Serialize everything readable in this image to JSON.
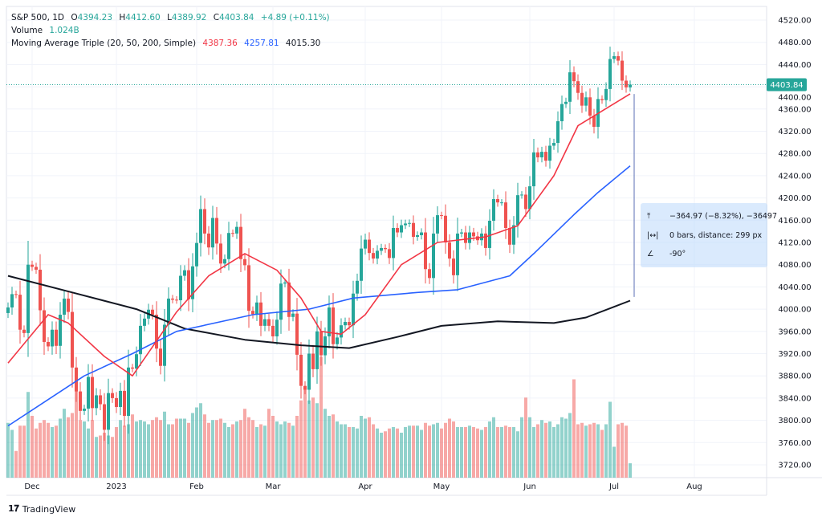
{
  "legend": {
    "symbol": "S&P 500, 1D",
    "open_label": "O",
    "open": "4394.23",
    "high_label": "H",
    "high": "4412.60",
    "low_label": "L",
    "low": "4389.92",
    "close_label": "C",
    "close": "4403.84",
    "change": "+4.89 (+0.11%)",
    "volume_label": "Volume",
    "volume": "1.024B",
    "ma_label": "Moving Average Triple (20, 50, 200, Simple)",
    "ma20": "4387.36",
    "ma50": "4257.81",
    "ma200": "4015.30"
  },
  "measure": {
    "price_range": "−364.97 (−8.32%), −36497",
    "bars_distance": "0 bars, distance: 299 px",
    "angle": "-90°",
    "icons": [
      "vertical-range-icon",
      "horizontal-range-icon",
      "angle-icon"
    ]
  },
  "brand": {
    "logo": "TV",
    "name": "TradingView"
  },
  "colors": {
    "up": "#26a69a",
    "down": "#ef5350",
    "ma20": "#f23645",
    "ma50": "#2962ff",
    "ma200": "#131722",
    "measure": "#5b6fb5"
  },
  "chart_data": {
    "type": "candlestick",
    "title": "S&P 500, 1D",
    "start_date": "2022-11-22",
    "ylim": [
      3700,
      4540
    ],
    "y_ticks": [
      "4520.00",
      "4480.00",
      "4440.00",
      "4400.00",
      "4360.00",
      "4320.00",
      "4280.00",
      "4240.00",
      "4200.00",
      "4160.00",
      "4120.00",
      "4080.00",
      "4040.00",
      "4000.00",
      "3960.00",
      "3920.00",
      "3880.00",
      "3840.00",
      "3800.00",
      "3760.00",
      "3720.00"
    ],
    "x_ticks": [
      {
        "label": "Dec",
        "date": "2022-12-01"
      },
      {
        "label": "2023",
        "date": "2023-01-03"
      },
      {
        "label": "Feb",
        "date": "2023-02-01"
      },
      {
        "label": "Mar",
        "date": "2023-03-01"
      },
      {
        "label": "Apr",
        "date": "2023-04-03"
      },
      {
        "label": "May",
        "date": "2023-05-01"
      },
      {
        "label": "Jun",
        "date": "2023-06-01"
      },
      {
        "label": "Jul",
        "date": "2023-07-03"
      },
      {
        "label": "Aug",
        "date": "2023-08-01"
      }
    ],
    "last_price": "4403.84",
    "closes": [
      4003,
      4027,
      4026,
      3963,
      3957,
      4080,
      4076,
      4071,
      3998,
      3941,
      3933,
      3963,
      3934,
      3990,
      4019,
      3995,
      3895,
      3852,
      3817,
      3821,
      3878,
      3822,
      3845,
      3829,
      3783,
      3849,
      3840,
      3824,
      3853,
      3808,
      3895,
      3893,
      3919,
      3970,
      3983,
      3999,
      3990,
      3929,
      3898,
      3972,
      4019,
      4017,
      4016,
      4060,
      4070,
      4018,
      4077,
      4119,
      4180,
      4136,
      4111,
      4164,
      4118,
      4082,
      4090,
      4137,
      4136,
      4148,
      4090,
      4079,
      3997,
      3991,
      4012,
      3970,
      3982,
      3970,
      3951,
      3981,
      4046,
      4048,
      3986,
      3992,
      3918,
      3862,
      3855,
      3920,
      3892,
      3960,
      3917,
      3951,
      4003,
      3937,
      3949,
      3971,
      3977,
      3971,
      4028,
      4051,
      4109,
      4125,
      4101,
      4091,
      4105,
      4110,
      4108,
      4092,
      4146,
      4138,
      4151,
      4154,
      4155,
      4130,
      4133,
      4138,
      4072,
      4056,
      4136,
      4169,
      4168,
      4120,
      4091,
      4061,
      4136,
      4138,
      4119,
      4138,
      4131,
      4124,
      4136,
      4110,
      4159,
      4198,
      4192,
      4192,
      4146,
      4116,
      4151,
      4205,
      4206,
      4180,
      4221,
      4282,
      4273,
      4283,
      4267,
      4294,
      4299,
      4338,
      4369,
      4373,
      4426,
      4410,
      4389,
      4366,
      4381,
      4348,
      4328,
      4378,
      4376,
      4396,
      4450,
      4455,
      4447,
      4411,
      4399,
      4403.84
    ],
    "volume_billions": [
      3.9,
      3.4,
      1.9,
      3.7,
      3.7,
      6.1,
      4.4,
      3.5,
      3.9,
      4.1,
      3.9,
      3.6,
      3.7,
      4.2,
      4.9,
      4.3,
      4.6,
      7.5,
      4.1,
      4.0,
      3.5,
      4.1,
      2.9,
      3.0,
      3.2,
      3.0,
      2.9,
      3.6,
      4.1,
      3.7,
      3.8,
      4.5,
      4.0,
      4.1,
      4.0,
      3.8,
      4.1,
      4.3,
      4.1,
      4.7,
      3.8,
      3.8,
      4.2,
      4.2,
      4.2,
      3.9,
      4.6,
      5.0,
      5.3,
      4.5,
      3.9,
      4.1,
      4.1,
      4.2,
      3.9,
      3.6,
      3.8,
      4.0,
      4.1,
      4.9,
      4.3,
      4.1,
      3.6,
      3.8,
      3.7,
      4.9,
      4.4,
      4.0,
      3.8,
      4.0,
      3.9,
      3.7,
      4.4,
      5.5,
      6.3,
      5.5,
      5.7,
      5.3,
      8.6,
      4.9,
      4.4,
      4.5,
      4.0,
      3.8,
      3.8,
      3.6,
      3.6,
      3.5,
      4.4,
      4.2,
      4.3,
      3.8,
      3.5,
      3.2,
      3.3,
      3.5,
      3.6,
      3.5,
      3.2,
      3.6,
      3.7,
      3.7,
      3.7,
      3.4,
      3.9,
      3.7,
      3.8,
      3.9,
      3.5,
      3.9,
      4.2,
      4.0,
      3.6,
      3.6,
      3.6,
      3.7,
      3.6,
      3.5,
      3.4,
      3.6,
      4.0,
      4.3,
      3.6,
      3.6,
      3.7,
      3.6,
      3.6,
      3.3,
      4.3,
      5.7,
      4.3,
      3.6,
      3.8,
      4.1,
      3.9,
      4.0,
      3.6,
      3.8,
      4.3,
      4.2,
      4.6,
      7.0,
      3.8,
      3.9,
      3.7,
      3.8,
      3.9,
      3.8,
      3.4,
      3.8,
      5.4,
      2.2,
      3.8,
      3.9,
      3.7,
      1.024
    ],
    "ma20": [
      [
        "2022-11-22",
        3903
      ],
      [
        "2022-12-07",
        3990
      ],
      [
        "2022-12-14",
        3975
      ],
      [
        "2022-12-28",
        3915
      ],
      [
        "2023-01-09",
        3880
      ],
      [
        "2023-01-25",
        3995
      ],
      [
        "2023-02-06",
        4060
      ],
      [
        "2023-02-17",
        4100
      ],
      [
        "2023-03-02",
        4070
      ],
      [
        "2023-03-10",
        4020
      ],
      [
        "2023-03-17",
        3960
      ],
      [
        "2023-03-24",
        3955
      ],
      [
        "2023-04-03",
        3990
      ],
      [
        "2023-04-17",
        4080
      ],
      [
        "2023-04-28",
        4120
      ],
      [
        "2023-05-16",
        4130
      ],
      [
        "2023-05-26",
        4150
      ],
      [
        "2023-06-09",
        4240
      ],
      [
        "2023-06-20",
        4330
      ],
      [
        "2023-07-10",
        4387.36
      ]
    ],
    "ma50": [
      [
        "2022-11-22",
        3790
      ],
      [
        "2022-12-20",
        3880
      ],
      [
        "2023-01-09",
        3920
      ],
      [
        "2023-01-25",
        3960
      ],
      [
        "2023-02-22",
        3990
      ],
      [
        "2023-03-14",
        4000
      ],
      [
        "2023-03-29",
        4020
      ],
      [
        "2023-04-21",
        4030
      ],
      [
        "2023-05-05",
        4035
      ],
      [
        "2023-05-24",
        4060
      ],
      [
        "2023-06-02",
        4100
      ],
      [
        "2023-06-16",
        4170
      ],
      [
        "2023-06-27",
        4210
      ],
      [
        "2023-07-10",
        4257.81
      ]
    ],
    "ma200": [
      [
        "2022-11-22",
        4060
      ],
      [
        "2022-12-15",
        4030
      ],
      [
        "2023-01-10",
        4000
      ],
      [
        "2023-01-27",
        3965
      ],
      [
        "2023-02-17",
        3945
      ],
      [
        "2023-03-10",
        3935
      ],
      [
        "2023-03-28",
        3930
      ],
      [
        "2023-04-14",
        3950
      ],
      [
        "2023-05-01",
        3970
      ],
      [
        "2023-05-19",
        3978
      ],
      [
        "2023-06-09",
        3975
      ],
      [
        "2023-06-22",
        3985
      ],
      [
        "2023-07-10",
        4015.3
      ]
    ],
    "measure_range": [
      4387,
      4022
    ]
  }
}
